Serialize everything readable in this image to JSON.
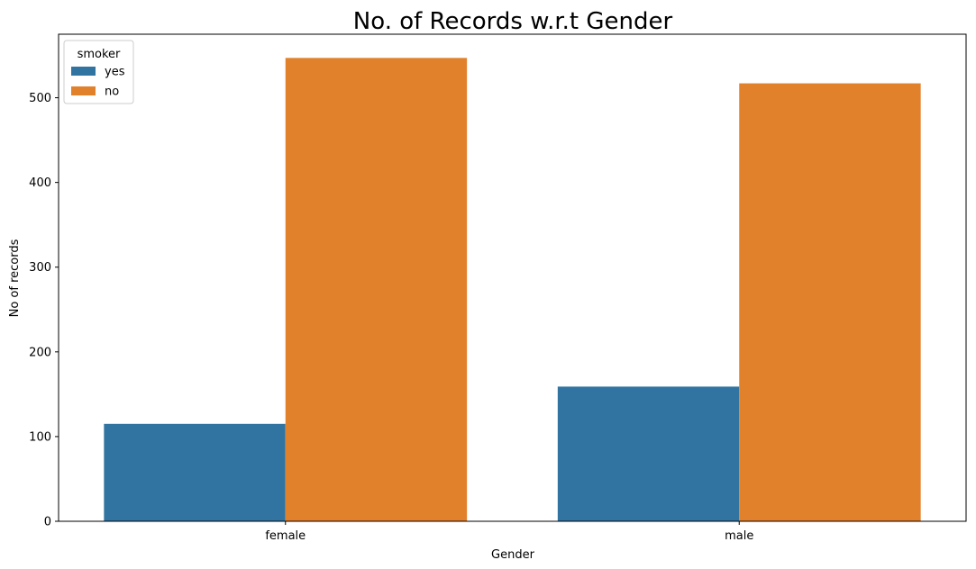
{
  "chart_data": {
    "type": "bar",
    "title": "No. of Records w.r.t Gender",
    "xlabel": "Gender",
    "ylabel": "No of records",
    "categories": [
      "female",
      "male"
    ],
    "series": [
      {
        "name": "yes",
        "values": [
          115,
          159
        ],
        "color": "#3274a1"
      },
      {
        "name": "no",
        "values": [
          547,
          517
        ],
        "color": "#e1812c"
      }
    ],
    "ylim": [
      0,
      575
    ],
    "yticks": [
      0,
      100,
      200,
      300,
      400,
      500
    ],
    "legend": {
      "title": "smoker",
      "position": "top-left"
    },
    "grid": false
  }
}
